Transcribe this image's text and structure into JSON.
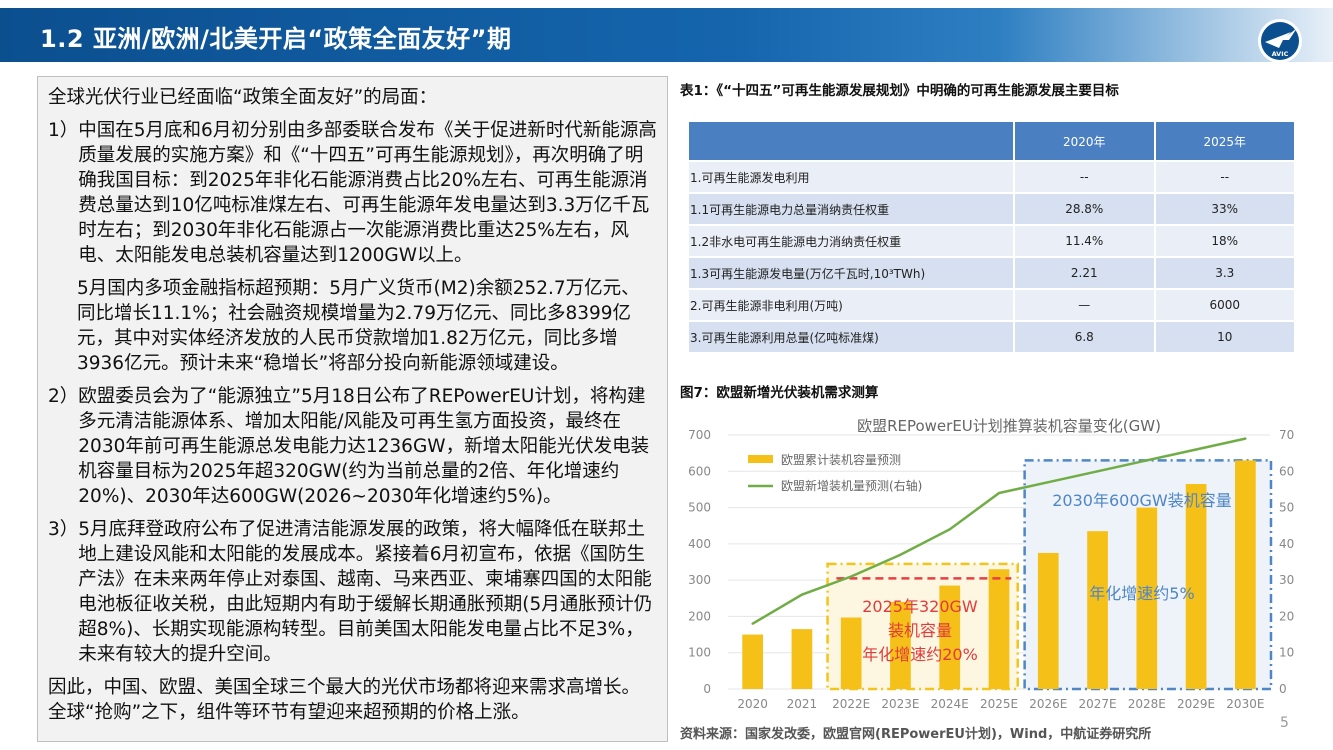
{
  "header": {
    "title": "1.2 亚洲/欧洲/北美开启“政策全面友好”期",
    "logo_text": "AVIC"
  },
  "left": {
    "lead": "全球光伏行业已经面临“政策全面友好”的局面：",
    "items": [
      {
        "num": "1）",
        "text": "中国在5月底和6月初分别由多部委联合发布《关于促进新时代新能源高质量发展的实施方案》和《“十四五”可再生能源规划》，再次明确了明确我国目标：到2025年非化石能源消费占比20%左右、可再生能源消费总量达到10亿吨标准煤左右、可再生能源年发电量达到3.3万亿千瓦时左右；到2030年非化石能源占一次能源消费比重达25%左右，风电、太阳能发电总装机容量达到1200GW以上。"
      },
      {
        "sub": "5月国内多项金融指标超预期：5月广义货币(M2)余额252.7万亿元、同比增长11.1%；社会融资规模增量为2.79万亿元、同比多8399亿元，其中对实体经济发放的人民币贷款增加1.82万亿元，同比多增3936亿元。预计未来“稳增长”将部分投向新能源领域建设。"
      },
      {
        "num": "2）",
        "text": "欧盟委员会为了“能源独立”5月18日公布了REPowerEU计划，将构建多元清洁能源体系、增加太阳能/风能及可再生氢方面投资，最终在2030年前可再生能源总发电能力达1236GW，新增太阳能光伏发电装机容量目标为2025年超320GW(约为当前总量的2倍、年化增速约20%)、2030年达600GW(2026~2030年化增速约5%)。"
      },
      {
        "num": "3）",
        "text": "5月底拜登政府公布了促进清洁能源发展的政策，将大幅降低在联邦土地上建设风能和太阳能的发展成本。紧接着6月初宣布，依据《国防生产法》在未来两年停止对泰国、越南、马来西亚、柬埔寨四国的太阳能电池板征收关税，由此短期内有助于缓解长期通胀预期(5月通胀预计仍超8%)、长期实现能源构转型。目前美国太阳能发电量占比不足3%，未来有较大的提升空间。"
      }
    ],
    "conclusion": "因此，中国、欧盟、美国全球三个最大的光伏市场都将迎来需求高增长。全球“抢购”之下，组件等环节有望迎来超预期的价格上涨。"
  },
  "table": {
    "caption": "表1：《“十四五”可再生能源发展规划》中明确的可再生能源发展主要目标",
    "headers": [
      "",
      "2020年",
      "2025年"
    ],
    "rows": [
      [
        "1.可再生能源发电利用",
        "--",
        "--"
      ],
      [
        "1.1可再生能源电力总量消纳责任权重",
        "28.8%",
        "33%"
      ],
      [
        "1.2非水电可再生能源电力消纳责任权重",
        "11.4%",
        "18%"
      ],
      [
        "1.3可再生能源发电量(万亿千瓦时,10³TWh)",
        "2.21",
        "3.3"
      ],
      [
        "2.可再生能源非电利用(万吨)",
        "—",
        "6000"
      ],
      [
        "3.可再生能源利用总量(亿吨标准煤)",
        "6.8",
        "10"
      ]
    ]
  },
  "figure": {
    "caption": "图7：欧盟新增光伏装机需求测算"
  },
  "chart_data": {
    "type": "bar",
    "title": "欧盟REPowerEU计划推算装机容量变化(GW)",
    "categories": [
      "2020",
      "2021",
      "2022E",
      "2023E",
      "2024E",
      "2025E",
      "2026E",
      "2027E",
      "2028E",
      "2029E",
      "2030E"
    ],
    "series": [
      {
        "name": "欧盟累计装机容量预测",
        "type": "bar",
        "axis": "left",
        "color": "#f5c018",
        "values": [
          150,
          165,
          197,
          240,
          285,
          330,
          375,
          435,
          500,
          565,
          630
        ]
      },
      {
        "name": "欧盟新增装机量预测(右轴)",
        "type": "line",
        "axis": "right",
        "color": "#70ad47",
        "values": [
          18,
          26,
          31,
          37,
          44,
          54,
          57,
          60,
          63,
          66,
          69
        ]
      }
    ],
    "ylim_left": [
      0,
      700
    ],
    "yticks_left": [
      "0",
      "100",
      "200",
      "300",
      "400",
      "500",
      "600",
      "700"
    ],
    "ylim_right": [
      0,
      70
    ],
    "yticks_right": [
      "0",
      "10",
      "20",
      "30",
      "40",
      "50",
      "60",
      "70"
    ],
    "annotations": {
      "box2025": [
        "2025年320GW",
        "装机容量",
        "年化增速约20%"
      ],
      "box2030_title": "2030年600GW装机容量",
      "box2030_rate": "年化增速约5%"
    },
    "legend_position": "top-left",
    "grid": true
  },
  "footer": {
    "source": "资料来源：国家发改委，欧盟官网(REPowerEU计划)，Wind，中航证券研究所",
    "page": "5"
  }
}
